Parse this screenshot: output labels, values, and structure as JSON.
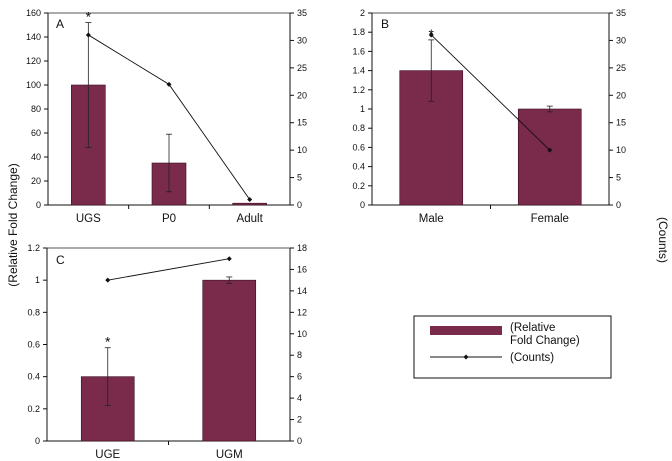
{
  "y_axis_label_left": "(Relative Fold Change)",
  "y_axis_label_right": "(Counts)",
  "legend": {
    "bar_label_line1": "(Relative",
    "bar_label_line2": "Fold Change)",
    "line_label": "(Counts)"
  },
  "colors": {
    "bar": "#7a2a4a",
    "line": "#111111"
  },
  "chart_data": [
    {
      "panel": "A",
      "type": "bar",
      "categories": [
        "UGS",
        "P0",
        "Adult"
      ],
      "ylim": [
        0,
        160
      ],
      "yticks": [
        0,
        20,
        40,
        60,
        80,
        100,
        120,
        140,
        160
      ],
      "y2lim": [
        0,
        35
      ],
      "y2ticks": [
        0,
        5,
        10,
        15,
        20,
        25,
        30,
        35
      ],
      "series": [
        {
          "name": "(Relative Fold Change)",
          "type": "bar",
          "values": [
            100,
            35,
            1.5
          ],
          "error": [
            52,
            24,
            0
          ]
        },
        {
          "name": "(Counts)",
          "type": "line",
          "axis": "right",
          "values": [
            31,
            22,
            1
          ]
        }
      ],
      "annotations": [
        {
          "category": "UGS",
          "text": "*"
        }
      ]
    },
    {
      "panel": "B",
      "type": "bar",
      "categories": [
        "Male",
        "Female"
      ],
      "ylim": [
        0,
        2
      ],
      "yticks": [
        0,
        0.2,
        0.4,
        0.6,
        0.8,
        1,
        1.2,
        1.4,
        1.6,
        1.8,
        2
      ],
      "y2lim": [
        0,
        35
      ],
      "y2ticks": [
        0,
        5,
        10,
        15,
        20,
        25,
        30,
        35
      ],
      "series": [
        {
          "name": "(Relative Fold Change)",
          "type": "bar",
          "values": [
            1.4,
            1.0
          ],
          "error": [
            0.32,
            0.03
          ]
        },
        {
          "name": "(Counts)",
          "type": "line",
          "axis": "right",
          "values": [
            31,
            10
          ]
        }
      ],
      "annotations": [
        {
          "category": "Male",
          "text": "*"
        }
      ]
    },
    {
      "panel": "C",
      "type": "bar",
      "categories": [
        "UGE",
        "UGM"
      ],
      "ylim": [
        0,
        1.2
      ],
      "yticks": [
        0,
        0.2,
        0.4,
        0.6,
        0.8,
        1,
        1.2
      ],
      "y2lim": [
        0,
        18
      ],
      "y2ticks": [
        0,
        2,
        4,
        6,
        8,
        10,
        12,
        14,
        16,
        18
      ],
      "series": [
        {
          "name": "(Relative Fold Change)",
          "type": "bar",
          "values": [
            0.4,
            1.0
          ],
          "error": [
            0.18,
            0.02
          ]
        },
        {
          "name": "(Counts)",
          "type": "line",
          "axis": "right",
          "values": [
            15,
            17
          ]
        }
      ],
      "annotations": [
        {
          "category": "UGE",
          "text": "*"
        }
      ]
    }
  ]
}
